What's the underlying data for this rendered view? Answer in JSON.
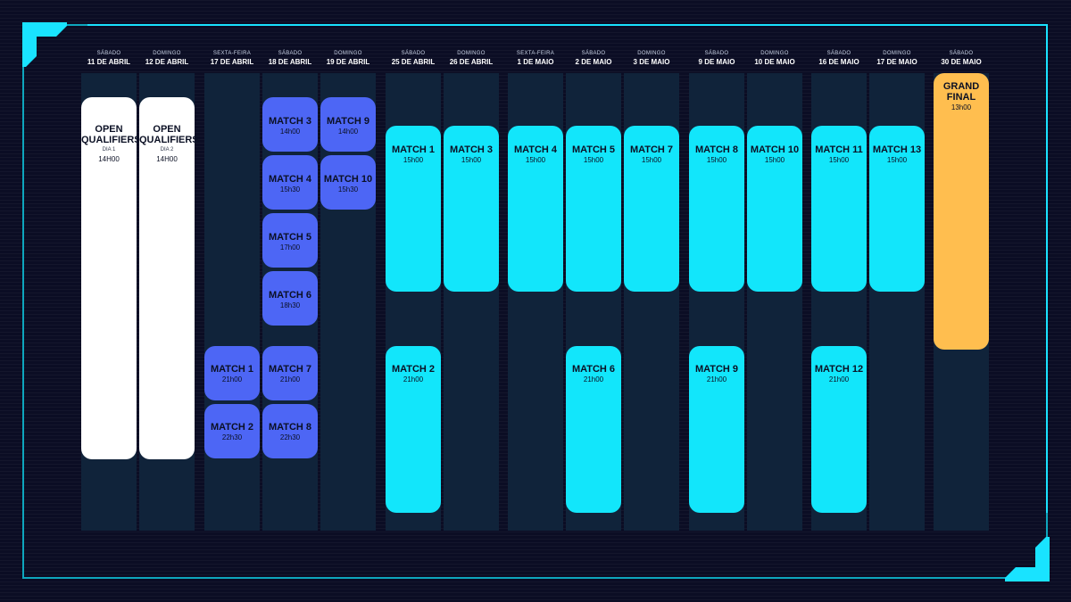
{
  "colors": {
    "open": "#ffffff",
    "early": "#4d66f5",
    "main": "#12e6fb",
    "final": "#ffbe4f",
    "frame": "#19e3ff"
  },
  "columns": [
    {
      "day": "SÁBADO",
      "date": "11 DE ABRIL"
    },
    {
      "day": "DOMINGO",
      "date": "12 DE ABRIL"
    },
    {
      "day": "SEXTA-FEIRA",
      "date": "17 DE ABRIL"
    },
    {
      "day": "SÁBADO",
      "date": "18 DE ABRIL"
    },
    {
      "day": "DOMINGO",
      "date": "19 DE ABRIL"
    },
    {
      "day": "SÁBADO",
      "date": "25 DE ABRIL"
    },
    {
      "day": "DOMINGO",
      "date": "26 DE ABRIL"
    },
    {
      "day": "SEXTA-FEIRA",
      "date": "1 DE MAIO"
    },
    {
      "day": "SÁBADO",
      "date": "2 DE MAIO"
    },
    {
      "day": "DOMINGO",
      "date": "3 DE MAIO"
    },
    {
      "day": "SÁBADO",
      "date": "9 DE MAIO"
    },
    {
      "day": "DOMINGO",
      "date": "10 DE MAIO"
    },
    {
      "day": "SÁBADO",
      "date": "16 DE MAIO"
    },
    {
      "day": "DOMINGO",
      "date": "17 DE MAIO"
    },
    {
      "day": "SÁBADO",
      "date": "30 DE MAIO"
    }
  ],
  "open": [
    {
      "title": "OPEN QUALIFIERS",
      "sub": "DIA 1",
      "time": "14H00"
    },
    {
      "title": "OPEN QUALIFIERS",
      "sub": "DIA 2",
      "time": "14H00"
    }
  ],
  "matches": {
    "m1a": {
      "title": "MATCH 1",
      "time": "21h00"
    },
    "m2a": {
      "title": "MATCH 2",
      "time": "22h30"
    },
    "m3a": {
      "title": "MATCH 3",
      "time": "14h00"
    },
    "m4a": {
      "title": "MATCH 4",
      "time": "15h30"
    },
    "m5a": {
      "title": "MATCH 5",
      "time": "17h00"
    },
    "m6a": {
      "title": "MATCH 6",
      "time": "18h30"
    },
    "m7a": {
      "title": "MATCH 7",
      "time": "21h00"
    },
    "m8a": {
      "title": "MATCH 8",
      "time": "22h30"
    },
    "m9a": {
      "title": "MATCH 9",
      "time": "14h00"
    },
    "m10a": {
      "title": "MATCH 10",
      "time": "15h30"
    },
    "m1b": {
      "title": "MATCH 1",
      "time": "15h00"
    },
    "m2b": {
      "title": "MATCH 2",
      "time": "21h00"
    },
    "m3b": {
      "title": "MATCH 3",
      "time": "15h00"
    },
    "m4b": {
      "title": "MATCH 4",
      "time": "15h00"
    },
    "m5b": {
      "title": "MATCH 5",
      "time": "15h00"
    },
    "m6b": {
      "title": "MATCH 6",
      "time": "21h00"
    },
    "m7b": {
      "title": "MATCH 7",
      "time": "15h00"
    },
    "m8b": {
      "title": "MATCH 8",
      "time": "15h00"
    },
    "m9b": {
      "title": "MATCH 9",
      "time": "21h00"
    },
    "m10b": {
      "title": "MATCH 10",
      "time": "15h00"
    },
    "m11b": {
      "title": "MATCH 11",
      "time": "15h00"
    },
    "m12b": {
      "title": "MATCH 12",
      "time": "21h00"
    },
    "m13b": {
      "title": "MATCH 13",
      "time": "15h00"
    }
  },
  "final": {
    "title": "GRAND FINAL",
    "time": "13h00"
  }
}
